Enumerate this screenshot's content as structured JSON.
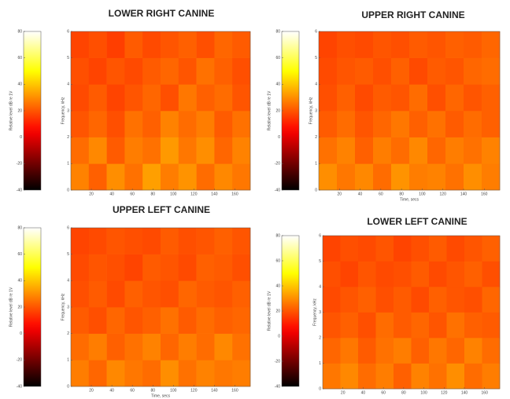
{
  "chart_data": [
    {
      "type": "heatmap",
      "title": "LOWER RIGHT CANINE",
      "ylabel": "Frequency, kHz",
      "colorbar_label": "Relative level dB re 1V",
      "xlim": [
        0,
        175
      ],
      "xticks": [
        20,
        40,
        60,
        80,
        100,
        120,
        140,
        160
      ],
      "ylim": [
        0,
        6
      ],
      "yticks": [
        0,
        1,
        2,
        3,
        4,
        5,
        6
      ],
      "clim": [
        -40,
        80
      ],
      "cticks": [
        -40,
        -20,
        0,
        20,
        40,
        60,
        80
      ],
      "z": [
        [
          28,
          22,
          30,
          25,
          33,
          27,
          31,
          24,
          29,
          26
        ],
        [
          24,
          29,
          21,
          27,
          25,
          32,
          26,
          30,
          23,
          28
        ],
        [
          20,
          23,
          19,
          25,
          22,
          28,
          24,
          27,
          21,
          25
        ],
        [
          18,
          21,
          17,
          20,
          23,
          19,
          26,
          22,
          24,
          20
        ],
        [
          19,
          17,
          20,
          18,
          21,
          23,
          20,
          25,
          22,
          19
        ],
        [
          17,
          19,
          16,
          21,
          18,
          20,
          22,
          19,
          23,
          21
        ]
      ]
    },
    {
      "type": "heatmap",
      "title": "UPPER RIGHT CANINE",
      "ylabel": "Frequency, kHz",
      "xlabel": "Time, secs",
      "colorbar_label": "Relative level dB re 1V",
      "xlim": [
        0,
        175
      ],
      "xticks": [
        20,
        40,
        60,
        80,
        100,
        120,
        140,
        160
      ],
      "ylim": [
        0,
        6
      ],
      "yticks": [
        0,
        1,
        2,
        3,
        4,
        5,
        6
      ],
      "clim": [
        -40,
        80
      ],
      "cticks": [
        -40,
        -20,
        0,
        20,
        40,
        60,
        80
      ],
      "z": [
        [
          30,
          26,
          29,
          24,
          31,
          27,
          28,
          25,
          30,
          27
        ],
        [
          25,
          28,
          22,
          27,
          24,
          29,
          23,
          27,
          25,
          28
        ],
        [
          21,
          24,
          20,
          23,
          26,
          22,
          25,
          21,
          24,
          22
        ],
        [
          19,
          22,
          18,
          21,
          20,
          24,
          19,
          23,
          20,
          22
        ],
        [
          18,
          20,
          21,
          19,
          22,
          18,
          21,
          20,
          23,
          24
        ],
        [
          17,
          19,
          18,
          20,
          19,
          21,
          20,
          22,
          21,
          23
        ]
      ]
    },
    {
      "type": "heatmap",
      "title": "UPPER LEFT CANINE",
      "ylabel": "Frequency, kHz",
      "xlabel": "Time, secs",
      "colorbar_label": "Relative level dB re 1V",
      "xlim": [
        0,
        175
      ],
      "xticks": [
        20,
        40,
        60,
        80,
        100,
        120,
        140,
        160
      ],
      "ylim": [
        0,
        6
      ],
      "yticks": [
        0,
        1,
        2,
        3,
        4,
        5,
        6
      ],
      "clim": [
        -40,
        80
      ],
      "cticks": [
        -40,
        -20,
        0,
        20,
        40,
        60,
        80
      ],
      "z": [
        [
          27,
          23,
          29,
          26,
          24,
          30,
          25,
          28,
          26,
          27
        ],
        [
          24,
          27,
          22,
          25,
          28,
          23,
          27,
          24,
          29,
          25
        ],
        [
          21,
          19,
          23,
          20,
          22,
          25,
          21,
          24,
          22,
          23
        ],
        [
          19,
          21,
          18,
          22,
          20,
          19,
          23,
          21,
          20,
          22
        ],
        [
          18,
          20,
          19,
          17,
          21,
          20,
          18,
          22,
          21,
          19
        ],
        [
          17,
          18,
          20,
          19,
          18,
          21,
          19,
          20,
          22,
          20
        ]
      ]
    },
    {
      "type": "heatmap",
      "title": "LOWER LEFT CANINE",
      "ylabel": "Frequency, kHz",
      "colorbar_label": "Relative level dB re 1V",
      "xlim": [
        0,
        175
      ],
      "xticks": [
        20,
        40,
        60,
        80,
        100,
        120,
        140,
        160
      ],
      "ylim": [
        0,
        6
      ],
      "yticks": [
        0,
        1,
        2,
        3,
        4,
        5,
        6
      ],
      "clim": [
        -40,
        80
      ],
      "cticks": [
        -40,
        -20,
        0,
        20,
        40,
        60,
        80
      ],
      "z": [
        [
          26,
          29,
          24,
          27,
          22,
          28,
          25,
          30,
          24,
          27
        ],
        [
          23,
          26,
          21,
          25,
          27,
          22,
          26,
          23,
          28,
          24
        ],
        [
          20,
          22,
          19,
          24,
          21,
          23,
          20,
          25,
          22,
          21
        ],
        [
          18,
          20,
          22,
          19,
          21,
          18,
          22,
          20,
          19,
          23
        ],
        [
          19,
          17,
          20,
          18,
          19,
          21,
          18,
          20,
          22,
          19
        ],
        [
          17,
          19,
          18,
          20,
          17,
          19,
          21,
          18,
          20,
          22
        ]
      ]
    }
  ]
}
